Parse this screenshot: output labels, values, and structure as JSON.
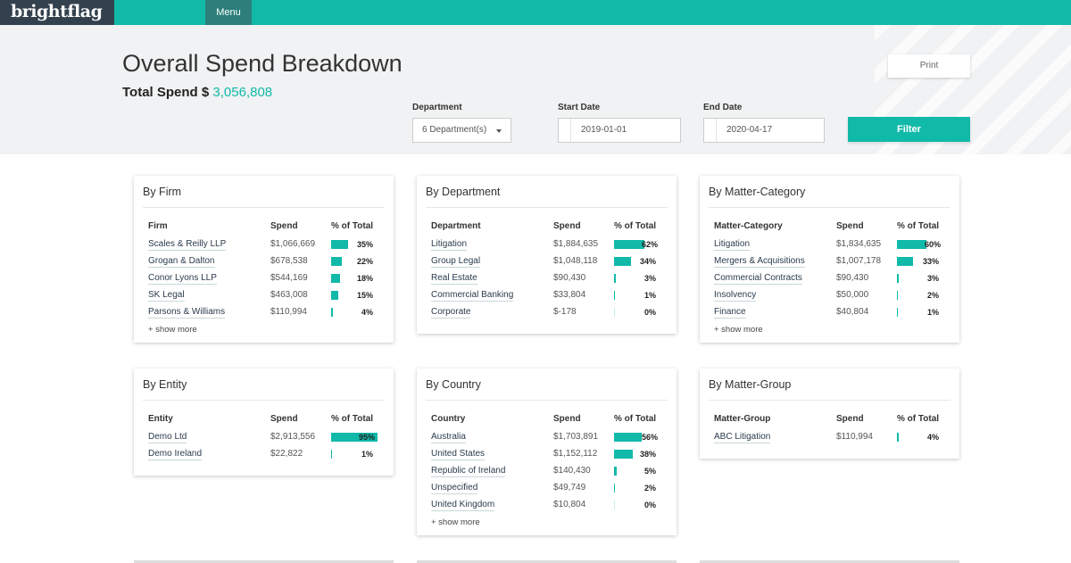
{
  "topbar": {
    "logo": "brightflag",
    "menu_label": "Menu"
  },
  "header": {
    "title": "Overall Spend Breakdown",
    "total_label": "Total Spend $",
    "total_value": "3,056,808",
    "print_label": "Print",
    "department_label": "Department",
    "department_value": "6 Department(s)",
    "start_label": "Start Date",
    "start_value": "2019-01-01",
    "end_label": "End Date",
    "end_value": "2020-04-17",
    "filter_label": "Filter"
  },
  "accent_color": "#11b9a9",
  "cards": [
    {
      "title": "By Firm",
      "col1": "Firm",
      "col2": "Spend",
      "col3": "% of Total",
      "show_more": "+ show more",
      "rows": [
        {
          "name": "Scales & Reilly LLP",
          "spend": "$1,066,669",
          "pct": "35%",
          "share": 0.35
        },
        {
          "name": "Grogan & Dalton",
          "spend": "$678,538",
          "pct": "22%",
          "share": 0.22
        },
        {
          "name": "Conor Lyons LLP",
          "spend": "$544,169",
          "pct": "18%",
          "share": 0.18
        },
        {
          "name": "SK Legal",
          "spend": "$463,008",
          "pct": "15%",
          "share": 0.15
        },
        {
          "name": "Parsons & Williams",
          "spend": "$110,994",
          "pct": "4%",
          "share": 0.04
        }
      ]
    },
    {
      "title": "By Department",
      "col1": "Department",
      "col2": "Spend",
      "col3": "% of Total",
      "show_more": "",
      "rows": [
        {
          "name": "Litigation",
          "spend": "$1,884,635",
          "pct": "62%",
          "share": 0.62
        },
        {
          "name": "Group Legal",
          "spend": "$1,048,118",
          "pct": "34%",
          "share": 0.34
        },
        {
          "name": "Real Estate",
          "spend": "$90,430",
          "pct": "3%",
          "share": 0.03
        },
        {
          "name": "Commercial Banking",
          "spend": "$33,804",
          "pct": "1%",
          "share": 0.01
        },
        {
          "name": "Corporate",
          "spend": "$-178",
          "pct": "0%",
          "share": 0
        }
      ]
    },
    {
      "title": "By Matter-Category",
      "col1": "Matter-Category",
      "col2": "Spend",
      "col3": "% of Total",
      "show_more": "+ show more",
      "rows": [
        {
          "name": "Litigation",
          "spend": "$1,834,635",
          "pct": "60%",
          "share": 0.6
        },
        {
          "name": "Mergers & Acquisitions",
          "spend": "$1,007,178",
          "pct": "33%",
          "share": 0.33
        },
        {
          "name": "Commercial Contracts",
          "spend": "$90,430",
          "pct": "3%",
          "share": 0.03
        },
        {
          "name": "Insolvency",
          "spend": "$50,000",
          "pct": "2%",
          "share": 0.02
        },
        {
          "name": "Finance",
          "spend": "$40,804",
          "pct": "1%",
          "share": 0.01
        }
      ]
    },
    {
      "title": "By Entity",
      "col1": "Entity",
      "col2": "Spend",
      "col3": "% of Total",
      "show_more": "",
      "rows": [
        {
          "name": "Demo Ltd",
          "spend": "$2,913,556",
          "pct": "95%",
          "share": 0.95
        },
        {
          "name": "Demo Ireland",
          "spend": "$22,822",
          "pct": "1%",
          "share": 0.01
        }
      ]
    },
    {
      "title": "By Country",
      "col1": "Country",
      "col2": "Spend",
      "col3": "% of Total",
      "show_more": "+ show more",
      "rows": [
        {
          "name": "Australia",
          "spend": "$1,703,891",
          "pct": "56%",
          "share": 0.56
        },
        {
          "name": "United States",
          "spend": "$1,152,112",
          "pct": "38%",
          "share": 0.38
        },
        {
          "name": "Republic of Ireland",
          "spend": "$140,430",
          "pct": "5%",
          "share": 0.05
        },
        {
          "name": "Unspecified",
          "spend": "$49,749",
          "pct": "2%",
          "share": 0.02
        },
        {
          "name": "United Kingdom",
          "spend": "$10,804",
          "pct": "0%",
          "share": 0
        }
      ]
    },
    {
      "title": "By Matter-Group",
      "col1": "Matter-Group",
      "col2": "Spend",
      "col3": "% of Total",
      "show_more": "",
      "rows": [
        {
          "name": "ABC Litigation",
          "spend": "$110,994",
          "pct": "4%",
          "share": 0.04
        }
      ]
    }
  ]
}
